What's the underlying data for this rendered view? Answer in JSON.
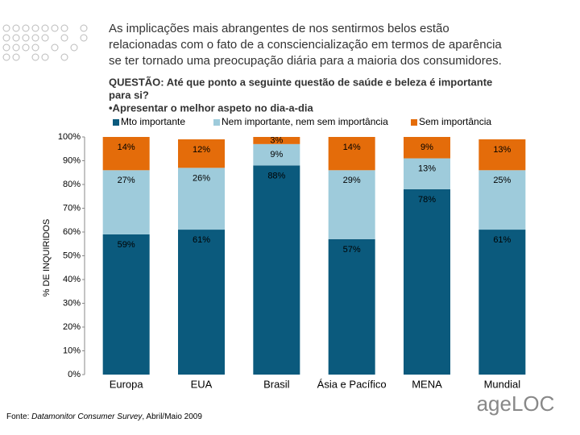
{
  "chart_data": {
    "type": "stacked_bar",
    "title": [
      "As implicações mais abrangentes de nos sentirmos belos estão",
      "relacionadas com o fato de a consciencialização em termos de aparência",
      "se ter tornado uma preocupação diária para a maioria dos consumidores."
    ],
    "question": [
      "QUESTÃO: Até que ponto a seguinte questão de saúde e beleza é importante",
      "para si?",
      "•Apresentar o melhor aspeto no dia-a-dia"
    ],
    "y_label": "% DE INQUIRIDOS",
    "categories": [
      "Europa",
      "EUA",
      "Brasil",
      "Ásia e Pacífico",
      "MENA",
      "Mundial"
    ],
    "series": [
      {
        "name": "Mto importante",
        "color": "#0b5a7d",
        "values": [
          59,
          61,
          88,
          57,
          78,
          61
        ],
        "value_labels": [
          "59%",
          "61%",
          "88%",
          "57%",
          "78%",
          "61%"
        ]
      },
      {
        "name": "Nem importante, nem sem importância",
        "color": "#9ecbdb",
        "values": [
          27,
          26,
          9,
          29,
          13,
          25
        ],
        "value_labels": [
          "27%",
          "26%",
          "9%",
          "29%",
          "13%",
          "25%"
        ]
      },
      {
        "name": "Sem importância",
        "color": "#e46c0a",
        "values": [
          14,
          12,
          3,
          14,
          9,
          13
        ],
        "value_labels": [
          "14%",
          "12%",
          "3%",
          "14%",
          "9%",
          "13%"
        ]
      }
    ],
    "ylim": [
      0,
      100
    ],
    "yticks": [
      {
        "value": 0,
        "label": "0%"
      },
      {
        "value": 10,
        "label": "10%"
      },
      {
        "value": 20,
        "label": "20%"
      },
      {
        "value": 30,
        "label": "30%"
      },
      {
        "value": 40,
        "label": "40%"
      },
      {
        "value": 50,
        "label": "50%"
      },
      {
        "value": 60,
        "label": "60%"
      },
      {
        "value": 70,
        "label": "70%"
      },
      {
        "value": 80,
        "label": "80%"
      },
      {
        "value": 90,
        "label": "90%"
      },
      {
        "value": 100,
        "label": "100%"
      }
    ],
    "source": {
      "prefix": "Fonte: ",
      "italic": "Datamonitor Consumer Survey",
      "suffix": ", Abril/Maio 2009"
    },
    "logo": "ageLOC"
  }
}
